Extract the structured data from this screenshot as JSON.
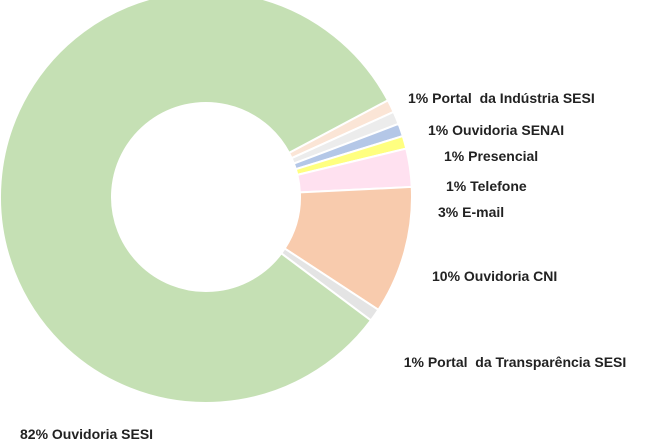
{
  "chart_data": {
    "type": "donut",
    "categories": [
      "Portal  da Indústria SESI",
      "Ouvidoria SENAI",
      "Presencial",
      "Telefone",
      "E-mail",
      "Ouvidoria CNI",
      "Portal  da Transparência SESI",
      "Ouvidoria SESI"
    ],
    "values": [
      1,
      1,
      1,
      1,
      3,
      10,
      1,
      82
    ],
    "value_labels": [
      "1%",
      "1%",
      "1%",
      "1%",
      "3%",
      "10%",
      "1%",
      "82%"
    ],
    "colors": [
      "#fbe5d6",
      "#ececec",
      "#b4c7e7",
      "#ffff80",
      "#ffe1f0",
      "#f8cbad",
      "#e4e4e4",
      "#c5e0b4"
    ]
  }
}
